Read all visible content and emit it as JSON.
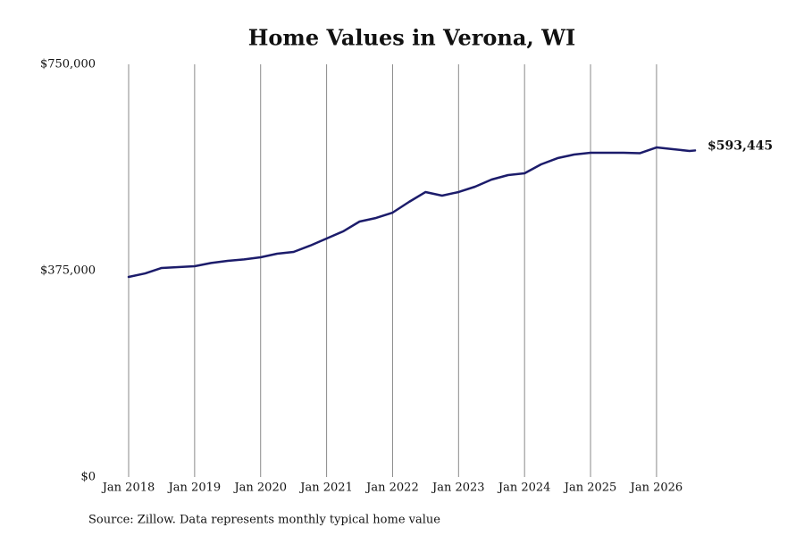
{
  "chart_data": {
    "type": "line",
    "title": "Home Values in Verona, WI",
    "source": "Source: Zillow. Data represents monthly typical home value",
    "x": [
      "2018-01",
      "2018-04",
      "2018-07",
      "2018-10",
      "2019-01",
      "2019-04",
      "2019-07",
      "2019-10",
      "2020-01",
      "2020-04",
      "2020-07",
      "2020-10",
      "2021-01",
      "2021-04",
      "2021-07",
      "2021-10",
      "2022-01",
      "2022-04",
      "2022-07",
      "2022-10",
      "2023-01",
      "2023-04",
      "2023-07",
      "2023-10",
      "2024-01",
      "2024-04",
      "2024-07",
      "2024-10",
      "2025-01",
      "2025-04",
      "2025-07",
      "2025-10",
      "2026-01",
      "2026-04",
      "2026-07",
      "2026-08"
    ],
    "series": [
      {
        "name": "Typical home value",
        "color": "#1c1c6b",
        "values": [
          363600,
          370000,
          379900,
          381500,
          383100,
          389000,
          392900,
          395500,
          399400,
          405800,
          409100,
          420500,
          433400,
          446400,
          464300,
          470800,
          480500,
          500000,
          517900,
          511400,
          517900,
          527600,
          540600,
          548700,
          551900,
          568200,
          579500,
          586000,
          589300,
          589300,
          589300,
          588500,
          599000,
          595800,
          592500,
          593445
        ]
      }
    ],
    "xlim": [
      "2018-01",
      "2026-08"
    ],
    "xticks": [
      {
        "value": "2018-01",
        "label": "Jan 2018"
      },
      {
        "value": "2019-01",
        "label": "Jan 2019"
      },
      {
        "value": "2020-01",
        "label": "Jan 2020"
      },
      {
        "value": "2021-01",
        "label": "Jan 2021"
      },
      {
        "value": "2022-01",
        "label": "Jan 2022"
      },
      {
        "value": "2023-01",
        "label": "Jan 2023"
      },
      {
        "value": "2024-01",
        "label": "Jan 2024"
      },
      {
        "value": "2025-01",
        "label": "Jan 2025"
      },
      {
        "value": "2026-01",
        "label": "Jan 2026"
      }
    ],
    "ylim": [
      0,
      750000
    ],
    "yticks": [
      {
        "value": 0,
        "label": "$0"
      },
      {
        "value": 375000,
        "label": "$375,000"
      },
      {
        "value": 750000,
        "label": "$750,000"
      }
    ],
    "grid": "x",
    "annotations": [
      {
        "x": "2026-08",
        "value": 593445,
        "label": "$593,445"
      }
    ]
  }
}
